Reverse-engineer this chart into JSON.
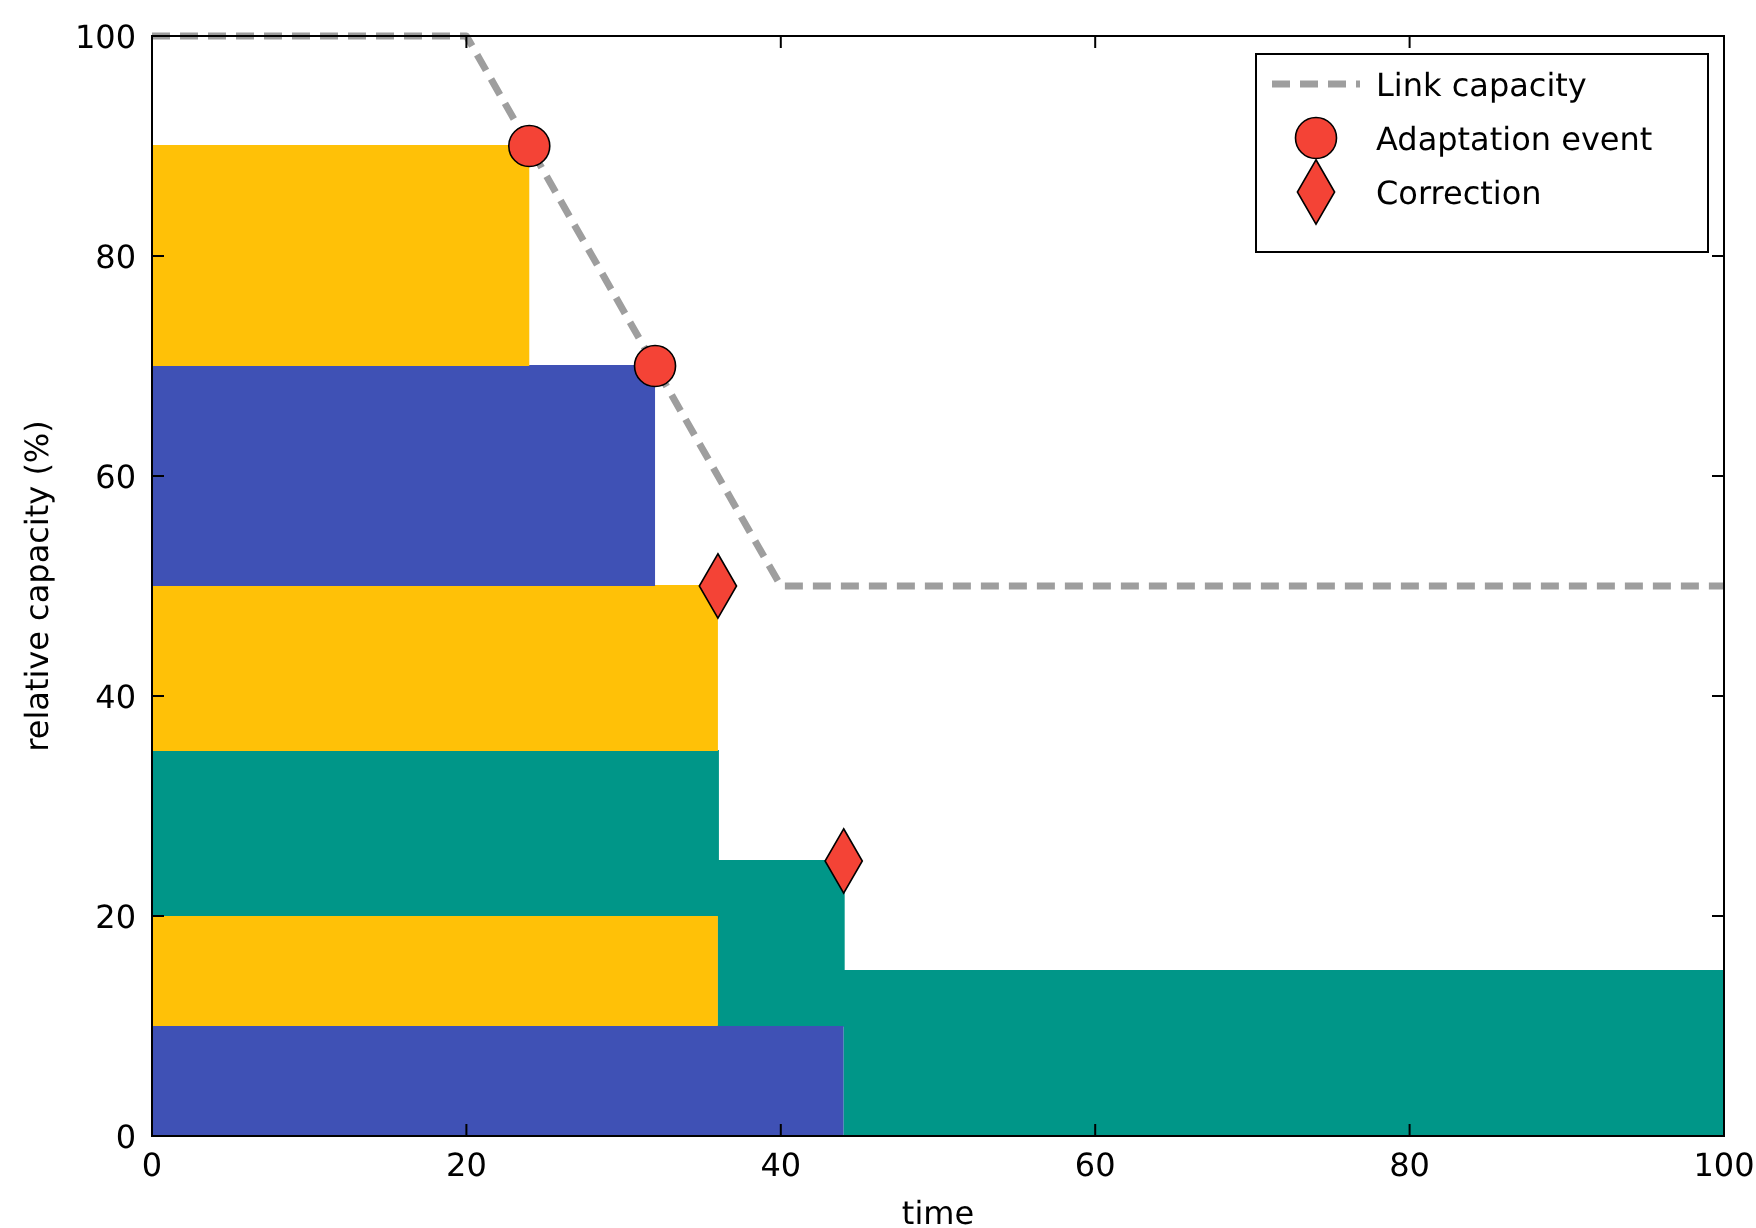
{
  "chart_data": {
    "type": "area",
    "stacked": true,
    "xlabel": "time",
    "ylabel": "relative capacity (%)",
    "xlim": [
      0,
      100
    ],
    "ylim": [
      0,
      100
    ],
    "xticks": [
      0,
      20,
      40,
      60,
      80,
      100
    ],
    "yticks": [
      0,
      20,
      40,
      60,
      80,
      100
    ],
    "legend": "top right",
    "x": [
      0,
      24,
      24,
      32,
      32,
      36,
      36,
      44,
      44,
      100
    ],
    "series": [
      {
        "color": "#3f51b5",
        "values": [
          10,
          10,
          10,
          10,
          10,
          10,
          10,
          10,
          null,
          null
        ]
      },
      {
        "color": "#ffc107",
        "values": [
          10,
          10,
          10,
          10,
          10,
          10,
          null,
          null,
          null,
          null
        ]
      },
      {
        "color": "#009688",
        "values": [
          15,
          15,
          15,
          15,
          15,
          15,
          15,
          15,
          15,
          15
        ]
      },
      {
        "color": "#ffc107",
        "values": [
          15,
          15,
          15,
          15,
          15,
          15,
          null,
          null,
          null,
          null
        ]
      },
      {
        "color": "#3f51b5",
        "values": [
          20,
          20,
          20,
          20,
          null,
          null,
          null,
          null,
          null,
          null
        ]
      },
      {
        "color": "#ffc107",
        "values": [
          20,
          20,
          null,
          null,
          null,
          null,
          null,
          null,
          null,
          null
        ]
      },
      {
        "type": "line",
        "name": "Link capacity",
        "color": "#9e9e9e",
        "line_style": "dashed",
        "marker": "none",
        "x": [
          0,
          20,
          40,
          100
        ],
        "values": [
          100,
          100,
          50,
          50
        ]
      },
      {
        "type": "scatter",
        "name": "Adaptation event",
        "color": "#f44336",
        "marker": "circle",
        "x": [
          24,
          32
        ],
        "values": [
          90,
          70
        ]
      },
      {
        "type": "scatter",
        "name": "Correction",
        "color": "#f44336",
        "marker": "diamond",
        "x": [
          36,
          44
        ],
        "values": [
          50,
          25
        ]
      }
    ]
  }
}
